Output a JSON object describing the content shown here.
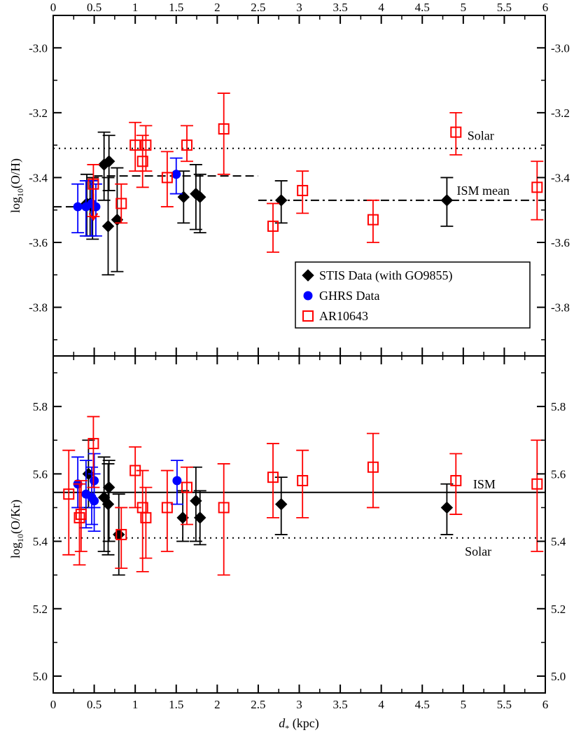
{
  "chart_data": [
    {
      "type": "scatter",
      "panel": "top",
      "ylabel": "log10(O/H)",
      "ylabel_main": "log",
      "ylabel_sub": "10",
      "ylabel_tail": "(O/H)",
      "ylim": [
        -3.95,
        -2.9
      ],
      "yticks": [
        -3.8,
        -3.6,
        -3.4,
        -3.2,
        -3.0
      ],
      "ytick_labels": [
        "-3.8",
        "-3.6",
        "-3.4",
        "-3.2",
        "-3.0"
      ],
      "xlim": [
        0,
        6
      ],
      "xticks_top": [
        0,
        0.5,
        1,
        1.5,
        2,
        2.5,
        3,
        3.5,
        4,
        4.5,
        5,
        5.5,
        6
      ],
      "xtick_labels_top": [
        "0",
        "0.5",
        "1",
        "1.5",
        "2",
        "2.5",
        "3",
        "3.5",
        "4",
        "4.5",
        "5",
        "5.5",
        "6"
      ],
      "reference_lines": [
        {
          "name": "Solar",
          "style": "dotted",
          "y": -3.31,
          "x_range": [
            0,
            6
          ]
        },
        {
          "name": "ISM mean near",
          "style": "dashed",
          "y": -3.49,
          "x_range": [
            0,
            0.5
          ]
        },
        {
          "name": "ISM mean mid",
          "style": "dashed",
          "y": -3.395,
          "x_range": [
            0.5,
            2.5
          ]
        },
        {
          "name": "ISM mean far",
          "style": "dashdot",
          "y": -3.47,
          "x_range": [
            2.5,
            6
          ]
        }
      ],
      "annotations": [
        {
          "text": "Solar",
          "x": 5.05,
          "y": -3.27
        },
        {
          "text": "ISM mean",
          "x": 4.92,
          "y": -3.44
        }
      ],
      "legend": {
        "position": "lower-right",
        "entries": [
          {
            "label": "STIS Data (with GO9855)",
            "marker": "diamond",
            "color": "#000000"
          },
          {
            "label": "GHRS Data",
            "marker": "circle",
            "color": "#0000ff"
          },
          {
            "label": "AR10643",
            "marker": "open-square",
            "color": "#ff0000"
          }
        ]
      },
      "series": [
        {
          "name": "STIS Data (with GO9855)",
          "marker": "diamond",
          "color": "#000000",
          "points": [
            {
              "x": 0.41,
              "y": -3.48,
              "lo": -3.58,
              "hi": -3.39
            },
            {
              "x": 0.45,
              "y": -3.48,
              "lo": -3.58,
              "hi": -3.41
            },
            {
              "x": 0.48,
              "y": -3.49,
              "lo": -3.59,
              "hi": -3.4
            },
            {
              "x": 0.62,
              "y": -3.36,
              "lo": -3.47,
              "hi": -3.26
            },
            {
              "x": 0.67,
              "y": -3.55,
              "lo": -3.7,
              "hi": -3.4
            },
            {
              "x": 0.68,
              "y": -3.35,
              "lo": -3.44,
              "hi": -3.27
            },
            {
              "x": 0.78,
              "y": -3.53,
              "lo": -3.69,
              "hi": -3.37
            },
            {
              "x": 1.59,
              "y": -3.46,
              "lo": -3.54,
              "hi": -3.38
            },
            {
              "x": 1.74,
              "y": -3.45,
              "lo": -3.56,
              "hi": -3.36
            },
            {
              "x": 1.79,
              "y": -3.46,
              "lo": -3.57,
              "hi": -3.39
            },
            {
              "x": 2.78,
              "y": -3.47,
              "lo": -3.54,
              "hi": -3.41
            },
            {
              "x": 4.8,
              "y": -3.47,
              "lo": -3.55,
              "hi": -3.4
            }
          ]
        },
        {
          "name": "GHRS Data",
          "marker": "circle",
          "color": "#0000ff",
          "points": [
            {
              "x": 0.3,
              "y": -3.49,
              "lo": -3.57,
              "hi": -3.42
            },
            {
              "x": 0.4,
              "y": -3.49,
              "lo": -3.58,
              "hi": -3.41
            },
            {
              "x": 0.47,
              "y": -3.48,
              "lo": -3.58,
              "hi": -3.41
            },
            {
              "x": 0.52,
              "y": -3.49,
              "lo": -3.58,
              "hi": -3.42
            },
            {
              "x": 1.5,
              "y": -3.39,
              "lo": -3.45,
              "hi": -3.34
            }
          ]
        },
        {
          "name": "AR10643",
          "marker": "open-square",
          "color": "#ff0000",
          "upper_limit_x": 0.49,
          "points": [
            {
              "x": 0.49,
              "y": -3.42,
              "lo": -3.52,
              "hi": -3.36
            },
            {
              "x": 0.83,
              "y": -3.48,
              "lo": -3.54,
              "hi": -3.42
            },
            {
              "x": 1.0,
              "y": -3.3,
              "lo": -3.38,
              "hi": -3.23
            },
            {
              "x": 1.09,
              "y": -3.35,
              "lo": -3.43,
              "hi": -3.27
            },
            {
              "x": 1.13,
              "y": -3.3,
              "lo": -3.38,
              "hi": -3.24
            },
            {
              "x": 1.39,
              "y": -3.4,
              "lo": -3.49,
              "hi": -3.32
            },
            {
              "x": 1.63,
              "y": -3.3,
              "lo": -3.35,
              "hi": -3.24
            },
            {
              "x": 2.08,
              "y": -3.25,
              "lo": -3.39,
              "hi": -3.14
            },
            {
              "x": 2.68,
              "y": -3.55,
              "lo": -3.63,
              "hi": -3.48
            },
            {
              "x": 3.04,
              "y": -3.44,
              "lo": -3.51,
              "hi": -3.38
            },
            {
              "x": 3.9,
              "y": -3.53,
              "lo": -3.6,
              "hi": -3.47
            },
            {
              "x": 4.91,
              "y": -3.26,
              "lo": -3.33,
              "hi": -3.2
            },
            {
              "x": 5.9,
              "y": -3.43,
              "lo": -3.53,
              "hi": -3.35
            }
          ]
        }
      ]
    },
    {
      "type": "scatter",
      "panel": "bottom",
      "ylabel": "log10(O/Kr)",
      "ylabel_main": "log",
      "ylabel_sub": "10",
      "ylabel_tail": "(O/Kr)",
      "xlabel": "d* (kpc)",
      "xlabel_main": "d",
      "xlabel_sub": "*",
      "xlabel_tail": " (kpc)",
      "ylim": [
        4.95,
        5.95
      ],
      "yticks": [
        5.0,
        5.2,
        5.4,
        5.6,
        5.8
      ],
      "ytick_labels": [
        "5.0",
        "5.2",
        "5.4",
        "5.6",
        "5.8"
      ],
      "xlim": [
        0,
        6
      ],
      "xticks": [
        0,
        0.5,
        1,
        1.5,
        2,
        2.5,
        3,
        3.5,
        4,
        4.5,
        5,
        5.5,
        6
      ],
      "xtick_labels": [
        "0",
        "0.5",
        "1",
        "1.5",
        "2",
        "2.5",
        "3",
        "3.5",
        "4",
        "4.5",
        "5",
        "5.5",
        "6"
      ],
      "reference_lines": [
        {
          "name": "ISM",
          "style": "solid",
          "y": 5.545,
          "x_range": [
            0,
            6
          ]
        },
        {
          "name": "Solar",
          "style": "dotted",
          "y": 5.41,
          "x_range": [
            0,
            6
          ]
        }
      ],
      "annotations": [
        {
          "text": "ISM",
          "x": 5.12,
          "y": 5.57
        },
        {
          "text": "Solar",
          "x": 5.02,
          "y": 5.37
        }
      ],
      "series": [
        {
          "name": "STIS Data (with GO9855)",
          "marker": "diamond",
          "color": "#000000",
          "points": [
            {
              "x": 0.43,
              "y": 5.6,
              "lo": 5.5,
              "hi": 5.7
            },
            {
              "x": 0.62,
              "y": 5.53,
              "lo": 5.37,
              "hi": 5.65
            },
            {
              "x": 0.67,
              "y": 5.51,
              "lo": 5.36,
              "hi": 5.63
            },
            {
              "x": 0.68,
              "y": 5.56,
              "lo": 5.4,
              "hi": 5.64
            },
            {
              "x": 0.8,
              "y": 5.42,
              "lo": 5.3,
              "hi": 5.54
            },
            {
              "x": 1.58,
              "y": 5.47,
              "lo": 5.4,
              "hi": 5.55
            },
            {
              "x": 1.74,
              "y": 5.52,
              "lo": 5.4,
              "hi": 5.62
            },
            {
              "x": 1.79,
              "y": 5.47,
              "lo": 5.39,
              "hi": 5.55
            },
            {
              "x": 2.78,
              "y": 5.51,
              "lo": 5.42,
              "hi": 5.59
            },
            {
              "x": 4.8,
              "y": 5.5,
              "lo": 5.42,
              "hi": 5.57
            }
          ]
        },
        {
          "name": "GHRS Data",
          "marker": "circle",
          "color": "#0000ff",
          "points": [
            {
              "x": 0.3,
              "y": 5.57,
              "lo": 5.5,
              "hi": 5.65
            },
            {
              "x": 0.4,
              "y": 5.54,
              "lo": 5.44,
              "hi": 5.64
            },
            {
              "x": 0.47,
              "y": 5.53,
              "lo": 5.45,
              "hi": 5.62
            },
            {
              "x": 0.5,
              "y": 5.52,
              "lo": 5.43,
              "hi": 5.6
            },
            {
              "x": 0.5,
              "y": 5.58,
              "lo": 5.5,
              "hi": 5.66
            },
            {
              "x": 1.51,
              "y": 5.58,
              "lo": 5.51,
              "hi": 5.64
            }
          ]
        },
        {
          "name": "AR10643",
          "marker": "open-square",
          "color": "#ff0000",
          "points": [
            {
              "x": 0.19,
              "y": 5.54,
              "lo": 5.36,
              "hi": 5.67
            },
            {
              "x": 0.32,
              "y": 5.47,
              "lo": 5.33,
              "hi": 5.57
            },
            {
              "x": 0.34,
              "y": 5.48,
              "lo": 5.37,
              "hi": 5.58
            },
            {
              "x": 0.49,
              "y": 5.69,
              "lo": 5.56,
              "hi": 5.77
            },
            {
              "x": 0.83,
              "y": 5.42,
              "lo": 5.32,
              "hi": 5.5
            },
            {
              "x": 1.0,
              "y": 5.61,
              "lo": 5.5,
              "hi": 5.68
            },
            {
              "x": 1.09,
              "y": 5.5,
              "lo": 5.31,
              "hi": 5.61
            },
            {
              "x": 1.13,
              "y": 5.47,
              "lo": 5.35,
              "hi": 5.56
            },
            {
              "x": 1.39,
              "y": 5.5,
              "lo": 5.37,
              "hi": 5.61
            },
            {
              "x": 1.63,
              "y": 5.56,
              "lo": 5.45,
              "hi": 5.62
            },
            {
              "x": 2.08,
              "y": 5.5,
              "lo": 5.3,
              "hi": 5.63
            },
            {
              "x": 2.68,
              "y": 5.59,
              "lo": 5.47,
              "hi": 5.69
            },
            {
              "x": 3.04,
              "y": 5.58,
              "lo": 5.47,
              "hi": 5.67
            },
            {
              "x": 3.9,
              "y": 5.62,
              "lo": 5.5,
              "hi": 5.72
            },
            {
              "x": 4.91,
              "y": 5.58,
              "lo": 5.48,
              "hi": 5.66
            },
            {
              "x": 5.9,
              "y": 5.57,
              "lo": 5.37,
              "hi": 5.7
            }
          ]
        }
      ]
    }
  ]
}
